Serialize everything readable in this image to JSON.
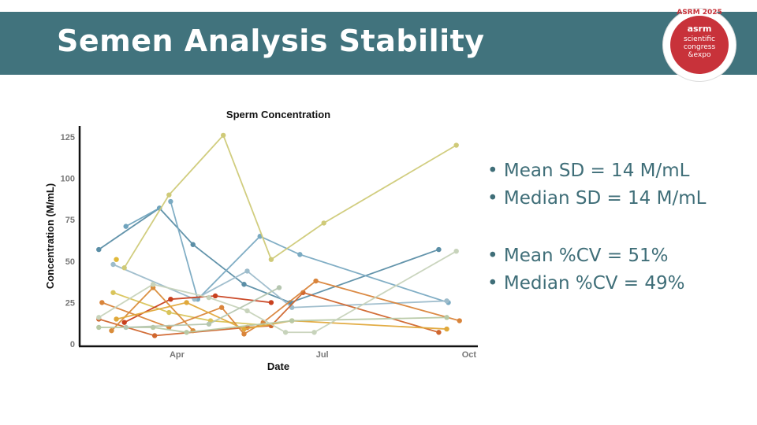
{
  "slide": {
    "title": "Semen Analysis Stability",
    "logo": {
      "text_top": "ASRM 2025",
      "brand": "asrm",
      "line1": "scientific",
      "line2": "congress",
      "line3": "&expo"
    },
    "bullets": [
      "• Mean SD = 14 M/mL",
      "• Median SD = 14 M/mL",
      "• Mean %CV = 51%",
      "• Median %CV = 49%"
    ],
    "colors": {
      "header": "#41737d",
      "bullet_text": "#3f6e78",
      "logo_red": "#c8323a"
    }
  },
  "chart_data": {
    "type": "line",
    "title": "Sperm Concentration",
    "xlabel": "Date",
    "ylabel": "Concentration (M/mL)",
    "xlim": [
      "Jan 30",
      "Oct 6"
    ],
    "ylim": [
      0,
      130
    ],
    "x_ticks": [
      {
        "date": "Apr 1",
        "label": "Apr"
      },
      {
        "date": "Jul 1",
        "label": "Jul"
      },
      {
        "date": "Oct 1",
        "label": "Oct"
      }
    ],
    "y_ticks": [
      0,
      25,
      50,
      75,
      100,
      125
    ],
    "grid": false,
    "legend": "none",
    "series": [
      {
        "color": "#5b8ea6",
        "points": [
          [
            "Feb 11",
            57
          ],
          [
            "Mar 21",
            82
          ],
          [
            "Apr 11",
            60
          ],
          [
            "May 13",
            36
          ],
          [
            "Jun 11",
            25
          ],
          [
            "Sep 12",
            57
          ]
        ]
      },
      {
        "color": "#6fa3bd",
        "points": [
          [
            "Feb 28",
            71
          ],
          [
            "Mar 21",
            82
          ]
        ]
      },
      {
        "color": "#7aaac2",
        "points": [
          [
            "Mar 28",
            86
          ],
          [
            "Apr 14",
            27
          ],
          [
            "May 23",
            65
          ],
          [
            "Jun 17",
            54
          ],
          [
            "Sep 18",
            25
          ]
        ]
      },
      {
        "color": "#9dbccb",
        "points": [
          [
            "Feb 20",
            48
          ],
          [
            "Apr 12",
            27
          ],
          [
            "May 15",
            44
          ],
          [
            "Jun 12",
            22
          ],
          [
            "Sep 17",
            26
          ]
        ]
      },
      {
        "color": "#cfca78",
        "points": [
          [
            "Feb 27",
            46
          ],
          [
            "Mar 27",
            90
          ],
          [
            "Apr 30",
            126
          ],
          [
            "May 30",
            51
          ],
          [
            "Jul 2",
            73
          ],
          [
            "Sep 23",
            120
          ]
        ]
      },
      {
        "color": "#e0b93a",
        "points": [
          [
            "Feb 22",
            51
          ]
        ]
      },
      {
        "color": "#d9c45a",
        "points": [
          [
            "Feb 20",
            31
          ],
          [
            "Mar 27",
            19
          ],
          [
            "Apr 22",
            14
          ],
          [
            "May 30",
            11
          ]
        ]
      },
      {
        "color": "#c8401e",
        "points": [
          [
            "Feb 27",
            13
          ],
          [
            "Mar 28",
            27
          ],
          [
            "Apr 25",
            29
          ],
          [
            "May 30",
            25
          ]
        ]
      },
      {
        "color": "#d0662e",
        "points": [
          [
            "Feb 11",
            15
          ],
          [
            "Mar 18",
            5
          ],
          [
            "May 15",
            10
          ],
          [
            "May 30",
            11
          ],
          [
            "Jun 19",
            31
          ],
          [
            "Sep 12",
            7
          ]
        ]
      },
      {
        "color": "#d98c3a",
        "points": [
          [
            "Feb 19",
            8
          ],
          [
            "Mar 17",
            34
          ],
          [
            "Apr 11",
            8
          ]
        ]
      },
      {
        "color": "#d9843a",
        "points": [
          [
            "Feb 13",
            25
          ],
          [
            "Mar 27",
            10
          ],
          [
            "Apr 29",
            22
          ],
          [
            "May 13",
            6
          ],
          [
            "May 25",
            13
          ],
          [
            "Jun 27",
            38
          ],
          [
            "Sep 25",
            14
          ]
        ]
      },
      {
        "color": "#e0a83a",
        "points": [
          [
            "Feb 22",
            15
          ],
          [
            "Apr 7",
            25
          ],
          [
            "May 13",
            9
          ],
          [
            "Jun 12",
            14
          ],
          [
            "Sep 17",
            9
          ]
        ]
      },
      {
        "color": "#b8c9a5",
        "points": [
          [
            "Feb 11",
            10
          ],
          [
            "Mar 17",
            10
          ],
          [
            "Apr 7",
            7
          ],
          [
            "Jun 12",
            14
          ],
          [
            "Sep 17",
            16
          ]
        ]
      },
      {
        "color": "#c7d3bb",
        "points": [
          [
            "Feb 11",
            16
          ],
          [
            "Mar 17",
            36
          ],
          [
            "Apr 21",
            28
          ],
          [
            "May 15",
            20
          ],
          [
            "Jun 8",
            7
          ],
          [
            "Jun 26",
            7
          ],
          [
            "Sep 23",
            56
          ]
        ]
      },
      {
        "color": "#b5c6b0",
        "points": [
          [
            "Feb 28",
            10
          ],
          [
            "Apr 21",
            12
          ],
          [
            "Jun 4",
            34
          ]
        ]
      }
    ]
  }
}
